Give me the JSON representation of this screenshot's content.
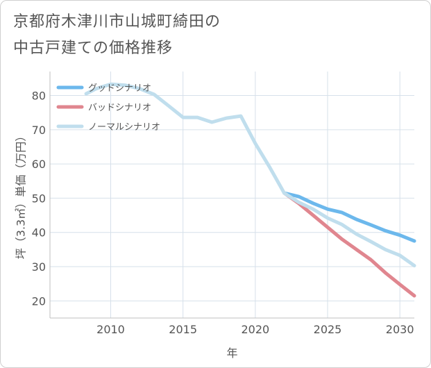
{
  "title_lines": [
    "京都府木津川市山城町綺田の",
    "中古戸建ての価格推移"
  ],
  "chart_data": {
    "type": "line",
    "title": "京都府木津川市山城町綺田の中古戸建ての価格推移",
    "xlabel": "年",
    "ylabel": "坪（3.3㎡）単価（万円）",
    "xlim": [
      2005.8,
      2031
    ],
    "ylim": [
      15,
      87
    ],
    "xticks": [
      2010,
      2015,
      2020,
      2025,
      2030
    ],
    "yticks": [
      20,
      30,
      40,
      50,
      60,
      70,
      80
    ],
    "grid": true,
    "legend_position": "top-left",
    "series": [
      {
        "name": "グッドシナリオ",
        "color": "#6cb8ec",
        "x": [
          2022,
          2023,
          2024,
          2025,
          2026,
          2027,
          2028,
          2029,
          2030,
          2031
        ],
        "y": [
          51.5,
          50.5,
          48.5,
          46.8,
          45.8,
          43.8,
          42.2,
          40.5,
          39.2,
          37.5
        ]
      },
      {
        "name": "バッドシナリオ",
        "color": "#e0868f",
        "x": [
          2022,
          2023,
          2024,
          2025,
          2026,
          2027,
          2028,
          2029,
          2030,
          2031
        ],
        "y": [
          51.5,
          48.5,
          45.0,
          41.5,
          38.0,
          35.0,
          32.0,
          28.2,
          24.8,
          21.5
        ]
      },
      {
        "name": "ノーマルシナリオ",
        "color": "#c0deed",
        "x": [
          2008.3,
          2009,
          2010,
          2011,
          2012,
          2013,
          2014,
          2015,
          2016,
          2017,
          2018,
          2019,
          2020,
          2021,
          2022,
          2023,
          2024,
          2025,
          2026,
          2027,
          2028,
          2029,
          2030,
          2031
        ],
        "y": [
          80.5,
          82.0,
          83.3,
          83.0,
          82.0,
          80.3,
          77.0,
          73.6,
          73.6,
          72.2,
          73.4,
          74.0,
          66.0,
          59.0,
          51.5,
          48.8,
          46.8,
          44.2,
          42.3,
          39.5,
          37.3,
          35.0,
          33.3,
          30.3
        ]
      }
    ]
  }
}
